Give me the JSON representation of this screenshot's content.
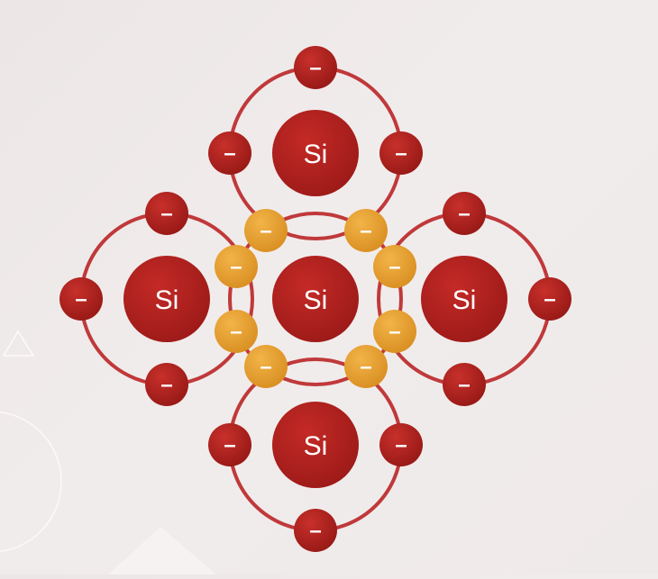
{
  "diagram": {
    "atom_label": "Si",
    "electron_label": "–",
    "atoms": [
      {
        "id": "top",
        "symbol": "Si"
      },
      {
        "id": "left",
        "symbol": "Si"
      },
      {
        "id": "center",
        "symbol": "Si"
      },
      {
        "id": "right",
        "symbol": "Si"
      },
      {
        "id": "bottom",
        "symbol": "Si"
      }
    ],
    "colors": {
      "nucleus": "#b3211e",
      "electron": "#b3211e",
      "shared_electron": "#e8a02f",
      "orbit": "#c0393a",
      "background": "#eee9e9"
    }
  }
}
